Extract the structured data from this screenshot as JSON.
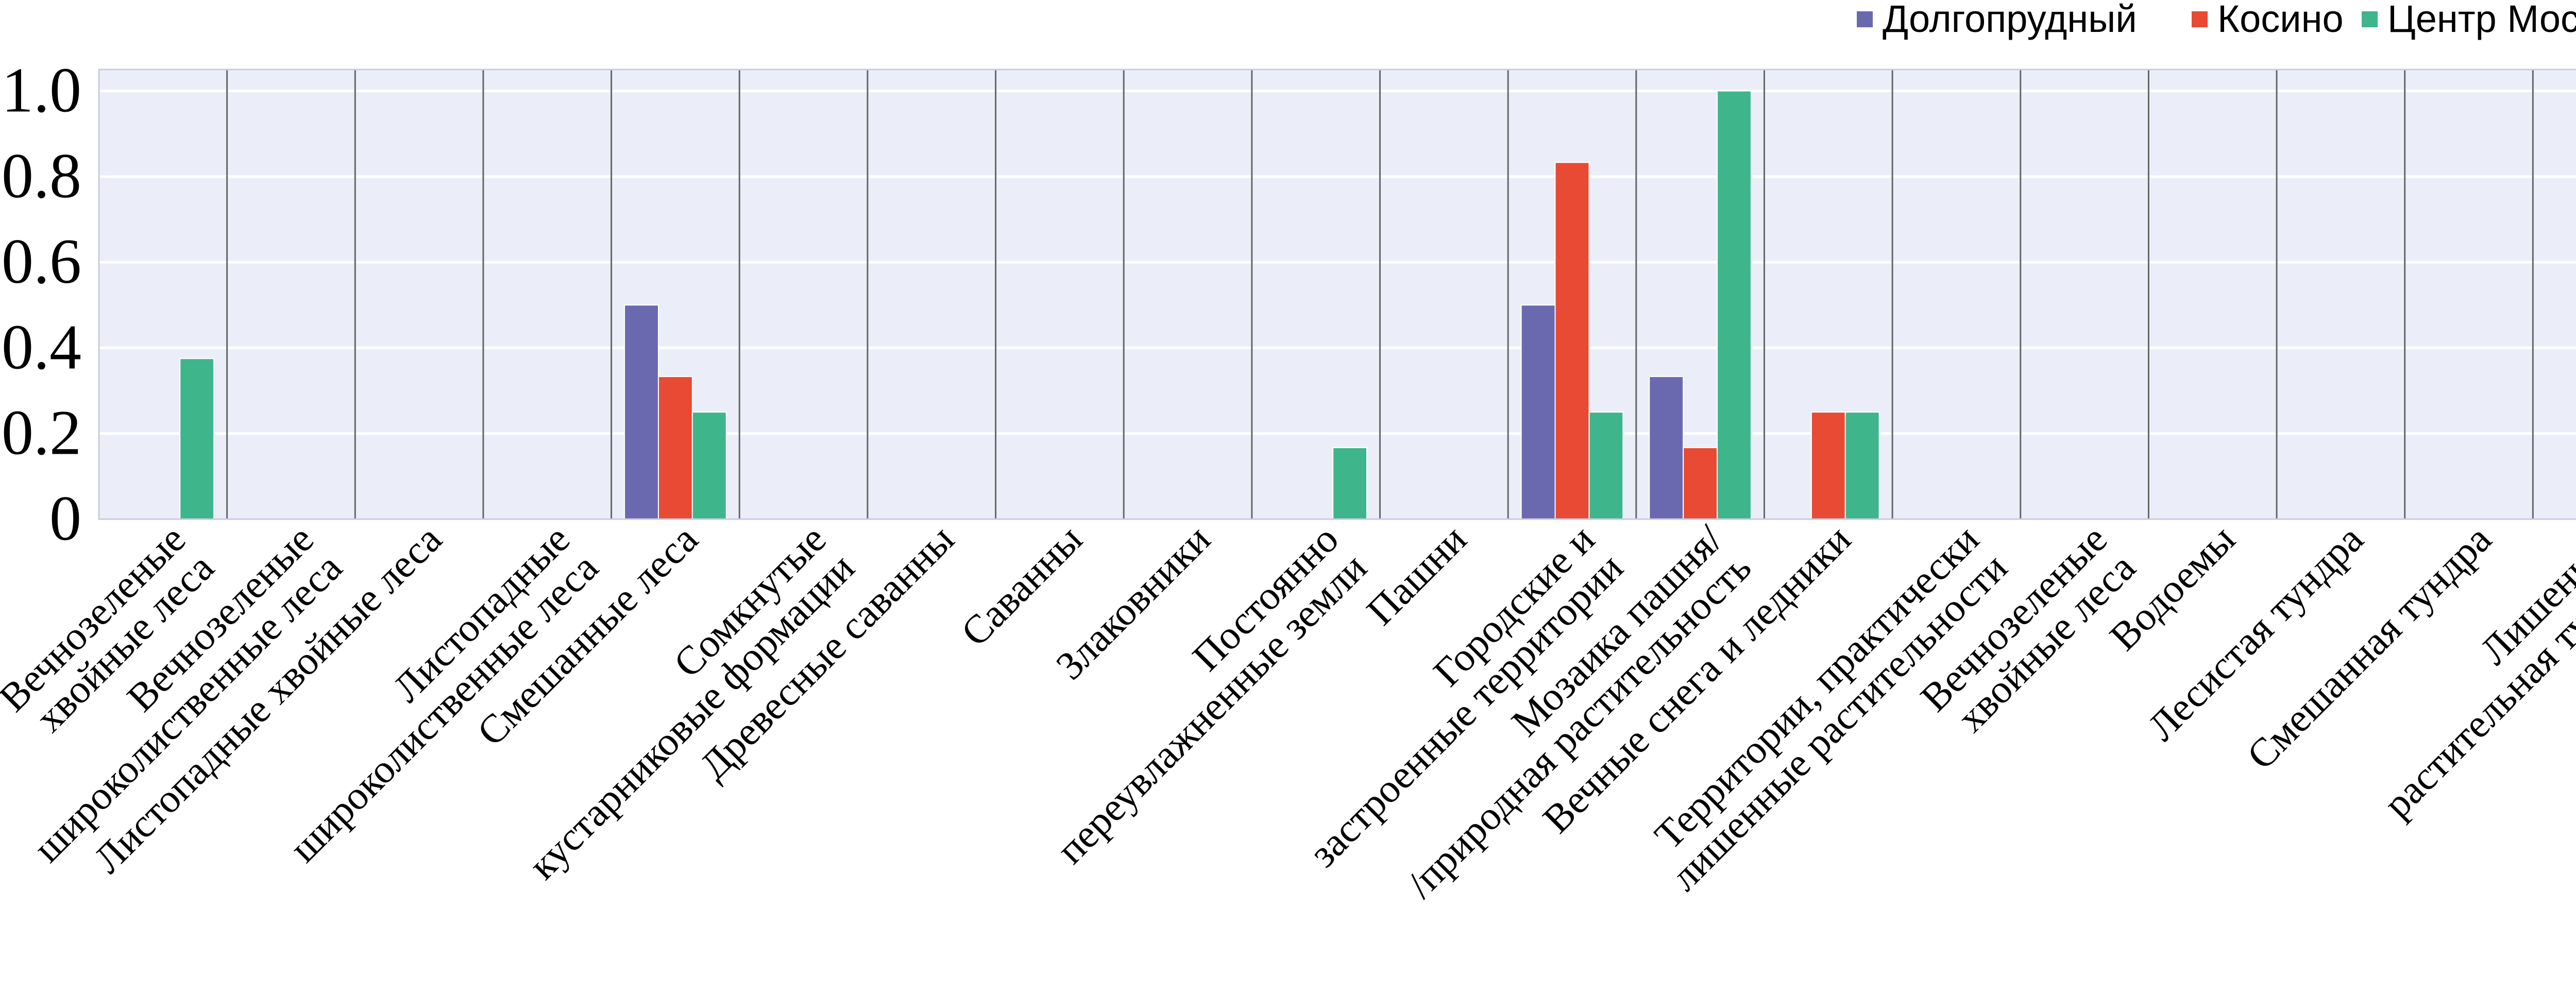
{
  "chart_data": {
    "type": "bar",
    "categories": [
      [
        "Вечнозеленые",
        "хвойные леса"
      ],
      [
        "Вечнозеленые",
        "широколиственные леса"
      ],
      [
        "Листопадные хвойные леса"
      ],
      [
        "Листопадные",
        "широколиственные леса"
      ],
      [
        "Смешанные леса"
      ],
      [
        "Сомкнутые",
        "кустарниковые формации"
      ],
      [
        "Древесные саванны"
      ],
      [
        "Саванны"
      ],
      [
        "Злаковники"
      ],
      [
        "Постоянно",
        "переувлажненные земли"
      ],
      [
        "Пашни"
      ],
      [
        "Городские и",
        "застроенные территории"
      ],
      [
        "Мозаика пашня/",
        "/природная растительность"
      ],
      [
        "Вечные снега и ледники"
      ],
      [
        "Территории, практически",
        "лишенные растительности"
      ],
      [
        "Вечнозеленые",
        "хвойные леса"
      ],
      [
        "Водоемы"
      ],
      [
        "Лесистая тундра"
      ],
      [
        "Смешанная тундра"
      ],
      [
        "Лишенная",
        "растительная тундра"
      ]
    ],
    "series": [
      {
        "name": "Долгопрудный",
        "color": "#6a69b0",
        "values": [
          0,
          0,
          0,
          0,
          0.5,
          0,
          0,
          0,
          0,
          0,
          0,
          0.5,
          0.333,
          0,
          0,
          0,
          0,
          0,
          0,
          0
        ]
      },
      {
        "name": "Косино",
        "color": "#e84a33",
        "values": [
          0,
          0,
          0,
          0,
          0.333,
          0,
          0,
          0,
          0,
          0,
          0,
          0.833,
          0.167,
          0.25,
          0,
          0,
          0,
          0,
          0,
          0
        ]
      },
      {
        "name": "Центр Москвы",
        "color": "#3fb58b",
        "values": [
          0.375,
          0,
          0,
          0,
          0.25,
          0,
          0,
          0,
          0,
          0.167,
          0,
          0.25,
          1.0,
          0.25,
          0,
          0,
          0,
          0,
          0,
          0
        ]
      }
    ],
    "y_ticks": [
      "0",
      "0.2",
      "0.4",
      "0.6",
      "0.8",
      "1.0"
    ],
    "y_tick_values": [
      0,
      0.2,
      0.4,
      0.6,
      0.8,
      1.0
    ],
    "ylim": [
      0,
      1.05
    ],
    "grid": true,
    "legend_position": "top-right",
    "colors": {
      "plot_background": "#ebeef8",
      "grid": "#ffffff",
      "separator": "#666666"
    }
  }
}
